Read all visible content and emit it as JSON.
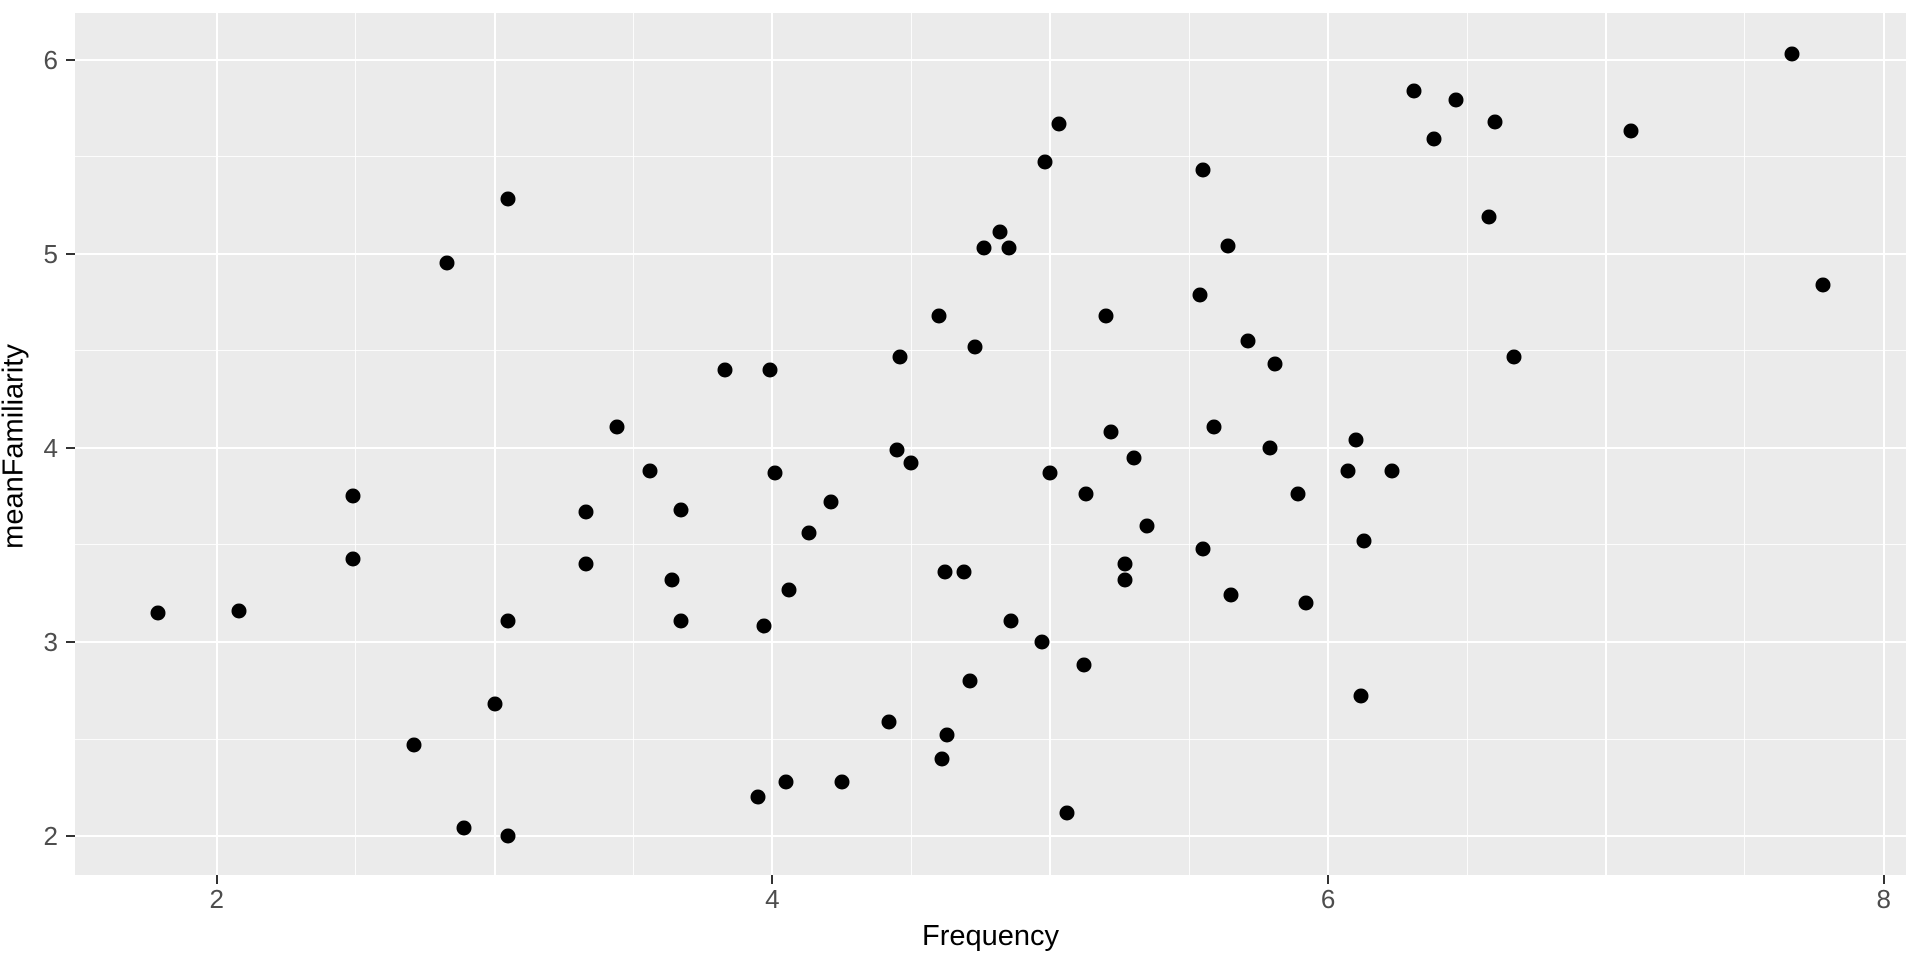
{
  "chart_data": {
    "type": "scatter",
    "title": "",
    "xlabel": "Frequency",
    "ylabel": "meanFamiliarity",
    "x_ticks": {
      "values": [
        2,
        4,
        6,
        8
      ],
      "labels": [
        "2",
        "4",
        "6",
        "8"
      ]
    },
    "y_ticks": {
      "values": [
        2,
        3,
        4,
        5,
        6
      ],
      "labels": [
        "2",
        "3",
        "4",
        "5",
        "6"
      ]
    },
    "x_minor_gridlines": [
      2.5,
      3.5,
      4.5,
      5.5,
      6.5,
      7.5
    ],
    "y_minor_gridlines": [
      2.5,
      3.5,
      4.5,
      5.5
    ],
    "xlim": [
      1.49,
      8.08
    ],
    "ylim": [
      1.8,
      6.24
    ],
    "grid": "major-and-minor-white-on-gray",
    "legend": "none",
    "style": {
      "panel_bg": "#EBEBEB",
      "grid_color": "#FFFFFF",
      "point_color": "#000000",
      "tick_label_color": "#4D4D4D",
      "axis_title_color": "#000000",
      "tick_mark_color": "#333333"
    },
    "points": [
      [
        3.05,
        5.28
      ],
      [
        2.83,
        4.95
      ],
      [
        4.76,
        5.03
      ],
      [
        4.82,
        5.11
      ],
      [
        4.85,
        5.03
      ],
      [
        5.03,
        5.67
      ],
      [
        4.98,
        5.47
      ],
      [
        5.55,
        5.43
      ],
      [
        5.64,
        5.04
      ],
      [
        6.31,
        5.84
      ],
      [
        6.46,
        5.79
      ],
      [
        6.38,
        5.59
      ],
      [
        5.54,
        4.79
      ],
      [
        7.67,
        6.03
      ],
      [
        6.6,
        5.68
      ],
      [
        7.09,
        5.63
      ],
      [
        6.58,
        5.19
      ],
      [
        7.78,
        4.84
      ],
      [
        2.49,
        3.75
      ],
      [
        2.49,
        3.43
      ],
      [
        4.6,
        4.68
      ],
      [
        4.73,
        4.52
      ],
      [
        4.46,
        4.47
      ],
      [
        3.83,
        4.4
      ],
      [
        3.99,
        4.4
      ],
      [
        3.44,
        4.11
      ],
      [
        4.45,
        3.99
      ],
      [
        4.5,
        3.92
      ],
      [
        3.56,
        3.88
      ],
      [
        4.01,
        3.87
      ],
      [
        4.21,
        3.72
      ],
      [
        3.33,
        3.67
      ],
      [
        3.67,
        3.68
      ],
      [
        4.13,
        3.56
      ],
      [
        3.33,
        3.4
      ],
      [
        3.64,
        3.32
      ],
      [
        4.62,
        3.36
      ],
      [
        4.69,
        3.36
      ],
      [
        5.2,
        4.68
      ],
      [
        5.71,
        4.55
      ],
      [
        5.81,
        4.43
      ],
      [
        5.59,
        4.11
      ],
      [
        5.22,
        4.08
      ],
      [
        5.79,
        4.0
      ],
      [
        6.1,
        4.04
      ],
      [
        5.3,
        3.95
      ],
      [
        5.0,
        3.87
      ],
      [
        6.07,
        3.88
      ],
      [
        6.23,
        3.88
      ],
      [
        5.13,
        3.76
      ],
      [
        5.89,
        3.76
      ],
      [
        5.35,
        3.6
      ],
      [
        6.13,
        3.52
      ],
      [
        5.55,
        3.48
      ],
      [
        5.27,
        3.4
      ],
      [
        5.27,
        3.32
      ],
      [
        6.67,
        4.47
      ],
      [
        1.79,
        3.15
      ],
      [
        2.08,
        3.16
      ],
      [
        3.05,
        3.11
      ],
      [
        3.0,
        2.68
      ],
      [
        2.71,
        2.47
      ],
      [
        2.89,
        2.04
      ],
      [
        3.05,
        2.0
      ],
      [
        4.06,
        3.27
      ],
      [
        3.67,
        3.11
      ],
      [
        3.97,
        3.08
      ],
      [
        4.71,
        2.8
      ],
      [
        4.42,
        2.59
      ],
      [
        4.63,
        2.52
      ],
      [
        4.61,
        2.4
      ],
      [
        4.05,
        2.28
      ],
      [
        4.25,
        2.28
      ],
      [
        3.95,
        2.2
      ],
      [
        5.65,
        3.24
      ],
      [
        5.92,
        3.2
      ],
      [
        4.86,
        3.11
      ],
      [
        4.97,
        3.0
      ],
      [
        5.12,
        2.88
      ],
      [
        6.12,
        2.72
      ],
      [
        5.06,
        2.12
      ]
    ]
  }
}
